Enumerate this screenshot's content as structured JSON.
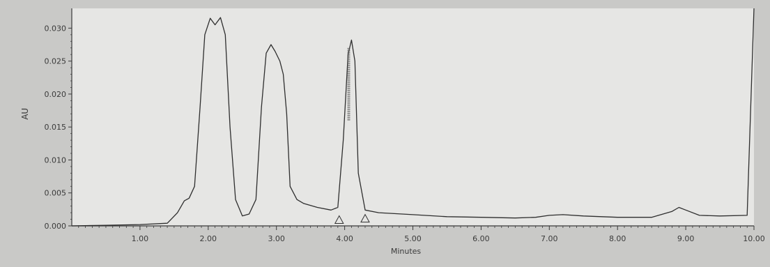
{
  "chart_data": {
    "type": "line",
    "title": "",
    "xlabel": "Minutes",
    "ylabel": "AU",
    "xlim": [
      0,
      10.0
    ],
    "ylim": [
      0,
      0.033
    ],
    "x_ticks": [
      1.0,
      2.0,
      3.0,
      4.0,
      5.0,
      6.0,
      7.0,
      8.0,
      9.0,
      10.0
    ],
    "x_tick_labels": [
      "1.00",
      "2.00",
      "3.00",
      "4.00",
      "5.00",
      "6.00",
      "7.00",
      "8.00",
      "9.00",
      "10.00"
    ],
    "y_ticks": [
      0.0,
      0.005,
      0.01,
      0.015,
      0.02,
      0.025,
      0.03
    ],
    "y_tick_labels": [
      "0.000",
      "0.005",
      "0.010",
      "0.015",
      "0.020",
      "0.025",
      "0.030"
    ],
    "grid": false,
    "series": [
      {
        "x": [
          0.0,
          0.5,
          1.0,
          1.4,
          1.55,
          1.65,
          1.72,
          1.8,
          1.88,
          1.95,
          2.03,
          2.1,
          2.18,
          2.25,
          2.32,
          2.4,
          2.5,
          2.6,
          2.7,
          2.78,
          2.85,
          2.92,
          2.98,
          3.05,
          3.1,
          3.15,
          3.2,
          3.3,
          3.4,
          3.6,
          3.8,
          3.9,
          3.98,
          4.05,
          4.1,
          4.15,
          4.2,
          4.3,
          4.5,
          5.0,
          5.5,
          6.0,
          6.5,
          6.8,
          7.0,
          7.2,
          7.5,
          8.0,
          8.5,
          8.8,
          8.9,
          9.0,
          9.2,
          9.5,
          9.9,
          10.0
        ],
        "y": [
          0.0,
          0.0001,
          0.0002,
          0.0004,
          0.002,
          0.0038,
          0.0042,
          0.006,
          0.018,
          0.029,
          0.0315,
          0.0305,
          0.0316,
          0.029,
          0.015,
          0.004,
          0.0015,
          0.0018,
          0.004,
          0.018,
          0.0262,
          0.0275,
          0.0265,
          0.025,
          0.023,
          0.017,
          0.006,
          0.004,
          0.0034,
          0.0028,
          0.0024,
          0.0028,
          0.013,
          0.026,
          0.0282,
          0.025,
          0.008,
          0.0024,
          0.002,
          0.0017,
          0.0014,
          0.0013,
          0.0012,
          0.0013,
          0.0016,
          0.0017,
          0.0015,
          0.0013,
          0.0013,
          0.0022,
          0.0028,
          0.0024,
          0.0016,
          0.0015,
          0.0016,
          0.033
        ]
      }
    ],
    "peak_markers": [
      {
        "x": 3.92,
        "y": 0.001
      },
      {
        "x": 4.3,
        "y": 0.0012
      }
    ],
    "peak_label_x": 4.06,
    "colors": {
      "background": "#c9c9c7",
      "plot_bg": "#e6e6e4",
      "line": "#2e2e2e",
      "axis": "#3a3a3a"
    }
  }
}
